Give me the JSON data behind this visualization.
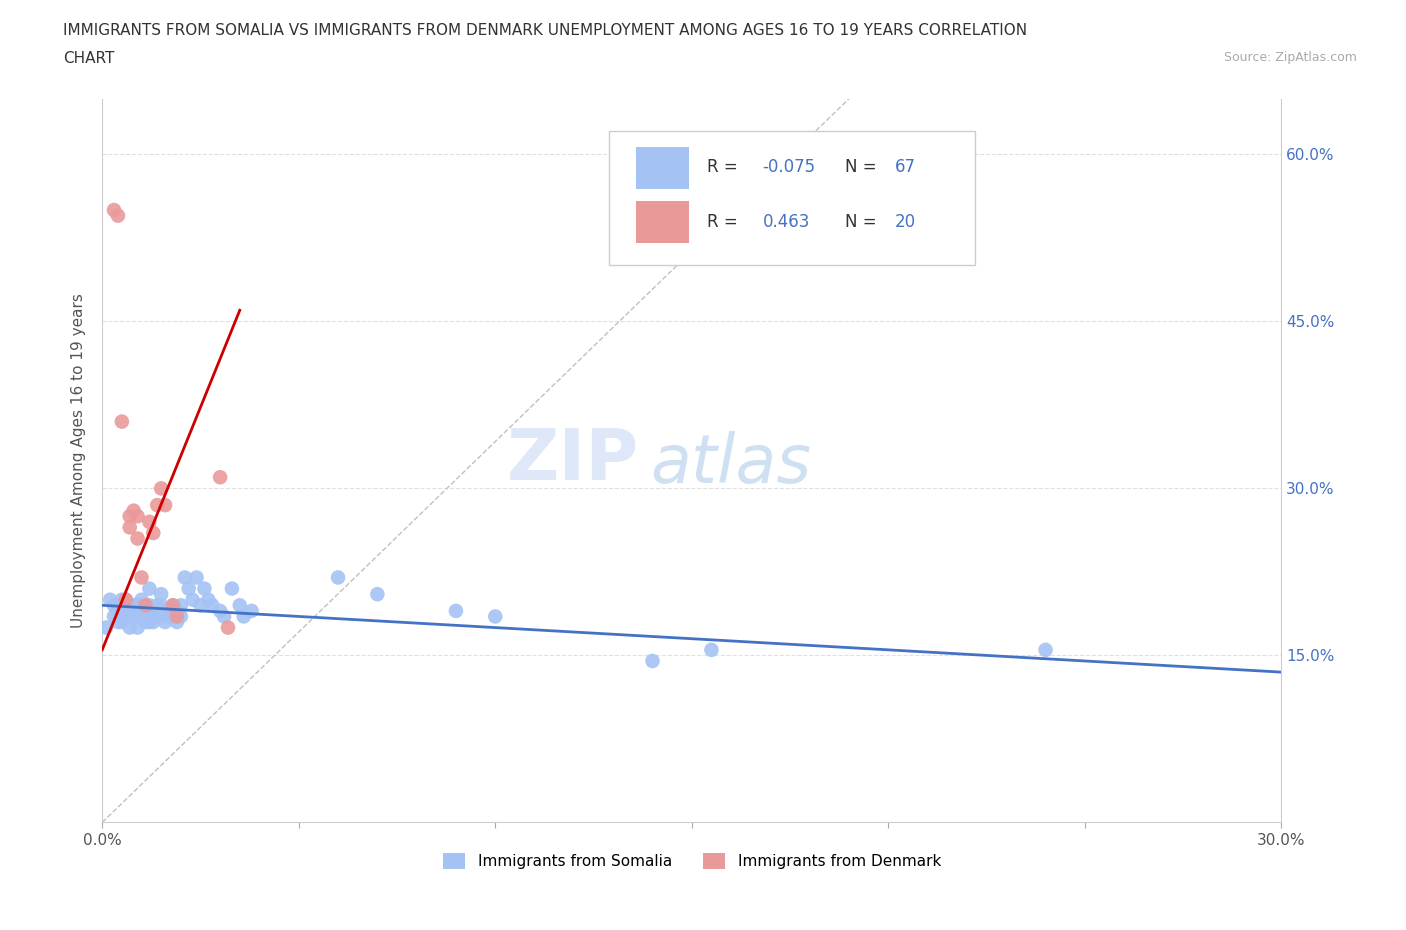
{
  "title_line1": "IMMIGRANTS FROM SOMALIA VS IMMIGRANTS FROM DENMARK UNEMPLOYMENT AMONG AGES 16 TO 19 YEARS CORRELATION",
  "title_line2": "CHART",
  "source": "Source: ZipAtlas.com",
  "ylabel": "Unemployment Among Ages 16 to 19 years",
  "xlim": [
    0,
    0.3
  ],
  "ylim": [
    0,
    0.65
  ],
  "ytick_positions": [
    0.15,
    0.3,
    0.45,
    0.6
  ],
  "ytick_labels": [
    "15.0%",
    "30.0%",
    "45.0%",
    "60.0%"
  ],
  "color_somalia": "#a4c2f4",
  "color_denmark": "#ea9999",
  "trend_color_somalia": "#4472c4",
  "trend_color_denmark": "#cc0000",
  "R_somalia": -0.075,
  "N_somalia": 67,
  "R_denmark": 0.463,
  "N_denmark": 20,
  "legend_label_somalia": "Immigrants from Somalia",
  "legend_label_denmark": "Immigrants from Denmark",
  "watermark_zip": "ZIP",
  "watermark_atlas": "atlas",
  "background_color": "#ffffff",
  "grid_color": "#e0e0e0",
  "somalia_x": [
    0.001,
    0.002,
    0.003,
    0.003,
    0.004,
    0.004,
    0.004,
    0.005,
    0.005,
    0.005,
    0.005,
    0.006,
    0.006,
    0.006,
    0.007,
    0.007,
    0.007,
    0.007,
    0.008,
    0.008,
    0.009,
    0.009,
    0.01,
    0.01,
    0.01,
    0.011,
    0.011,
    0.012,
    0.012,
    0.012,
    0.013,
    0.013,
    0.014,
    0.014,
    0.015,
    0.015,
    0.015,
    0.016,
    0.016,
    0.017,
    0.018,
    0.018,
    0.019,
    0.019,
    0.02,
    0.02,
    0.021,
    0.022,
    0.023,
    0.024,
    0.025,
    0.026,
    0.027,
    0.028,
    0.03,
    0.031,
    0.033,
    0.035,
    0.036,
    0.038,
    0.06,
    0.07,
    0.09,
    0.1,
    0.14,
    0.155,
    0.24
  ],
  "somalia_y": [
    0.175,
    0.2,
    0.185,
    0.195,
    0.19,
    0.185,
    0.18,
    0.2,
    0.195,
    0.19,
    0.18,
    0.2,
    0.195,
    0.185,
    0.195,
    0.19,
    0.185,
    0.175,
    0.195,
    0.185,
    0.195,
    0.175,
    0.2,
    0.195,
    0.185,
    0.19,
    0.18,
    0.21,
    0.195,
    0.18,
    0.19,
    0.18,
    0.195,
    0.185,
    0.205,
    0.195,
    0.185,
    0.19,
    0.18,
    0.185,
    0.195,
    0.185,
    0.19,
    0.18,
    0.195,
    0.185,
    0.22,
    0.21,
    0.2,
    0.22,
    0.195,
    0.21,
    0.2,
    0.195,
    0.19,
    0.185,
    0.21,
    0.195,
    0.185,
    0.19,
    0.22,
    0.205,
    0.19,
    0.185,
    0.145,
    0.155,
    0.155
  ],
  "denmark_x": [
    0.003,
    0.004,
    0.005,
    0.006,
    0.007,
    0.007,
    0.008,
    0.009,
    0.009,
    0.01,
    0.011,
    0.012,
    0.013,
    0.014,
    0.015,
    0.016,
    0.018,
    0.019,
    0.03,
    0.032
  ],
  "denmark_y": [
    0.55,
    0.545,
    0.36,
    0.2,
    0.275,
    0.265,
    0.28,
    0.275,
    0.255,
    0.22,
    0.195,
    0.27,
    0.26,
    0.285,
    0.3,
    0.285,
    0.195,
    0.185,
    0.31,
    0.175
  ]
}
